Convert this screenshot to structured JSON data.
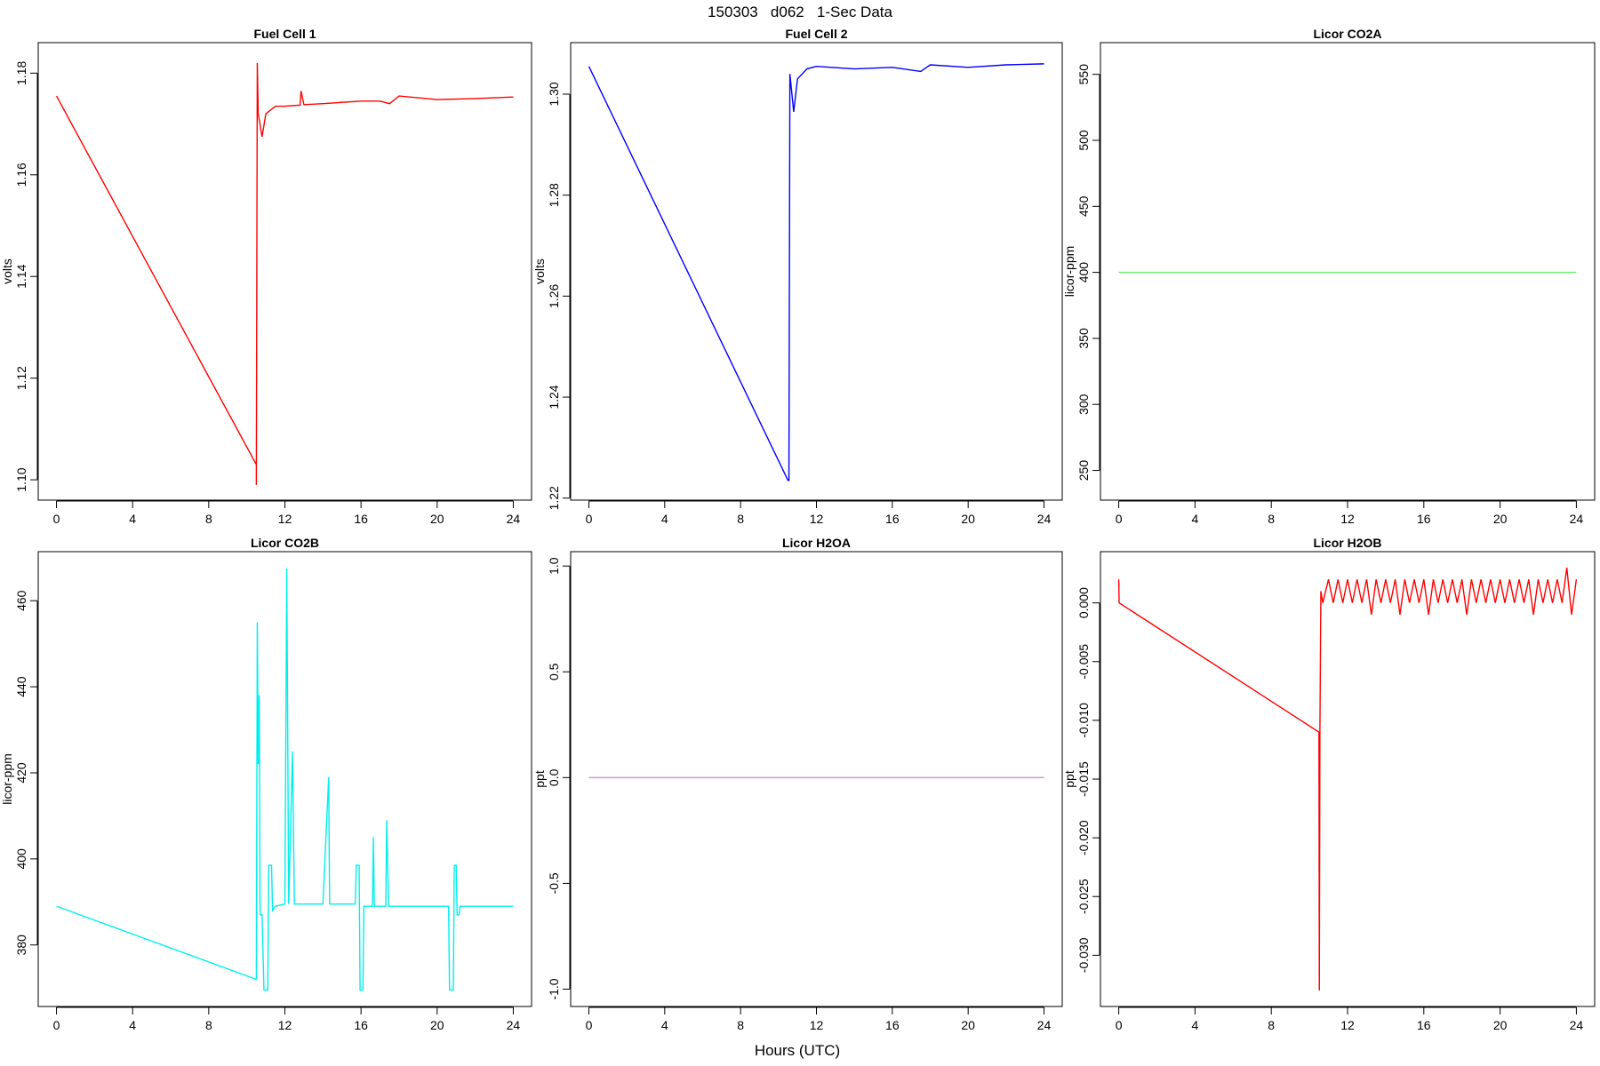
{
  "title": "150303   d062   1-Sec Data",
  "x_label": "Hours (UTC)",
  "chart_data": [
    {
      "type": "line",
      "title": "Fuel Cell 1",
      "y_label": "volts",
      "color": "#ff0000",
      "xlim": [
        -0.96,
        24.96
      ],
      "xticks": [
        0,
        4,
        8,
        12,
        16,
        20,
        24
      ],
      "ylim": [
        1.096,
        1.186
      ],
      "yticks": [
        {
          "value": 1.1,
          "label": "1.10"
        },
        1.12,
        1.14,
        1.16,
        1.18
      ],
      "x": [
        0,
        10.5,
        10.5,
        10.55,
        10.6,
        10.8,
        11,
        11.5,
        12,
        12.8,
        12.85,
        13,
        14,
        16,
        17,
        17.5,
        18,
        20,
        22,
        24
      ],
      "values": [
        1.1755,
        1.103,
        1.099,
        1.182,
        1.172,
        1.1675,
        1.172,
        1.1735,
        1.1735,
        1.1737,
        1.1765,
        1.1738,
        1.174,
        1.1745,
        1.1745,
        1.174,
        1.1755,
        1.1748,
        1.175,
        1.1753
      ]
    },
    {
      "type": "line",
      "title": "Fuel Cell 2",
      "y_label": "volts",
      "color": "#0000ff",
      "xlim": [
        -0.96,
        24.96
      ],
      "xticks": [
        0,
        4,
        8,
        12,
        16,
        20,
        24
      ],
      "ylim": [
        1.2196,
        1.3102
      ],
      "yticks": [
        1.22,
        1.24,
        1.26,
        1.28,
        {
          "value": 1.3,
          "label": "1.30"
        }
      ],
      "x": [
        0,
        10.5,
        10.55,
        10.6,
        10.8,
        11,
        11.5,
        12,
        14,
        16,
        17.5,
        18,
        20,
        22,
        24
      ],
      "values": [
        1.3055,
        1.2235,
        1.2235,
        1.304,
        1.2965,
        1.303,
        1.305,
        1.3055,
        1.305,
        1.3053,
        1.3045,
        1.3058,
        1.3053,
        1.3058,
        1.306
      ]
    },
    {
      "type": "line",
      "title": "Licor CO2A",
      "y_label": "licor-ppm",
      "color": "#66ee66",
      "xlim": [
        -0.96,
        24.96
      ],
      "xticks": [
        0,
        4,
        8,
        12,
        16,
        20,
        24
      ],
      "ylim": [
        227.5,
        574
      ],
      "yticks": [
        250,
        300,
        350,
        400,
        450,
        500,
        550
      ],
      "x": [
        0,
        24
      ],
      "values": [
        400,
        400
      ]
    },
    {
      "type": "line",
      "title": "Licor CO2B",
      "y_label": "licor-ppm",
      "color": "#00eeee",
      "xlim": [
        -0.96,
        24.96
      ],
      "xticks": [
        0,
        4,
        8,
        12,
        16,
        20,
        24
      ],
      "ylim": [
        365.7,
        471.4
      ],
      "yticks": [
        380,
        400,
        420,
        440,
        460
      ],
      "x": [
        0,
        10.5,
        10.55,
        10.6,
        10.65,
        10.7,
        10.8,
        10.9,
        11.1,
        11.15,
        11.3,
        11.35,
        11.5,
        12,
        12.1,
        12.2,
        12.4,
        12.5,
        14,
        14.3,
        14.35,
        15.7,
        15.75,
        15.9,
        15.95,
        16.1,
        16.15,
        16.6,
        16.65,
        16.7,
        17.3,
        17.35,
        17.45,
        20,
        20.6,
        20.65,
        20.85,
        20.9,
        21,
        21.05,
        21.15,
        21.2,
        24
      ],
      "values": [
        389,
        372,
        455,
        422,
        438,
        387,
        387,
        369.5,
        369.5,
        398.5,
        398.5,
        388,
        389,
        389.5,
        467.5,
        389.5,
        425,
        389.5,
        389.5,
        419,
        389.5,
        389.5,
        398.5,
        398.5,
        369.5,
        369.5,
        389,
        389,
        405,
        389,
        389,
        409,
        389,
        389,
        389,
        369.5,
        369.5,
        398.5,
        398.5,
        387,
        387,
        389,
        389
      ]
    },
    {
      "type": "line",
      "title": "Licor H2OA",
      "y_label": "ppt",
      "color": "#dd88dd",
      "xlim": [
        -0.96,
        24.96
      ],
      "xticks": [
        0,
        4,
        8,
        12,
        16,
        20,
        24
      ],
      "ylim": [
        -1.082,
        1.068
      ],
      "yticks": [
        {
          "value": -1,
          "label": "-1.0"
        },
        -0.5,
        {
          "value": 0,
          "label": "0.0"
        },
        0.5,
        {
          "value": 1,
          "label": "1.0"
        }
      ],
      "x": [
        0,
        24
      ],
      "values": [
        0,
        0
      ]
    },
    {
      "type": "line",
      "title": "Licor H2OB",
      "y_label": "ppt",
      "color": "#ff0000",
      "xlim": [
        -0.96,
        24.96
      ],
      "xticks": [
        0,
        4,
        8,
        12,
        16,
        20,
        24
      ],
      "ylim": [
        -0.03436,
        0.00436
      ],
      "yticks": [
        {
          "value": -0.03,
          "label": "-0.030"
        },
        {
          "value": -0.025,
          "label": "-0.025"
        },
        {
          "value": -0.02,
          "label": "-0.020"
        },
        {
          "value": -0.015,
          "label": "-0.015"
        },
        {
          "value": -0.01,
          "label": "-0.010"
        },
        {
          "value": -0.005,
          "label": "-0.005"
        },
        {
          "value": 0,
          "label": "0.000"
        }
      ],
      "x": [
        0,
        0.02,
        10.5,
        10.52,
        10.55,
        10.6,
        10.7,
        11,
        11.25,
        11.5,
        11.75,
        12,
        12.25,
        12.5,
        12.75,
        13,
        13.25,
        13.5,
        13.75,
        14,
        14.25,
        14.5,
        14.75,
        15,
        15.25,
        15.5,
        15.75,
        16,
        16.25,
        16.5,
        16.75,
        17,
        17.25,
        17.5,
        17.75,
        18,
        18.25,
        18.5,
        18.75,
        19,
        19.25,
        19.5,
        19.75,
        20,
        20.25,
        20.5,
        20.75,
        21,
        21.25,
        21.5,
        21.75,
        22,
        22.25,
        22.5,
        22.75,
        23,
        23.25,
        23.5,
        23.75,
        24
      ],
      "values": [
        0.002,
        0,
        -0.011,
        -0.033,
        -0.011,
        0.001,
        0,
        0.002,
        0,
        0.002,
        0,
        0.002,
        0,
        0.002,
        0,
        0.002,
        -0.001,
        0.002,
        0,
        0.002,
        0,
        0.002,
        -0.001,
        0.002,
        0,
        0.002,
        0,
        0.002,
        -0.001,
        0.002,
        0,
        0.002,
        0,
        0.002,
        0,
        0.002,
        -0.001,
        0.002,
        0,
        0.002,
        0,
        0.002,
        0,
        0.002,
        0,
        0.002,
        0,
        0.002,
        0,
        0.002,
        -0.001,
        0.002,
        0,
        0.002,
        0,
        0.002,
        0,
        0.003,
        -0.001,
        0.002
      ]
    }
  ]
}
